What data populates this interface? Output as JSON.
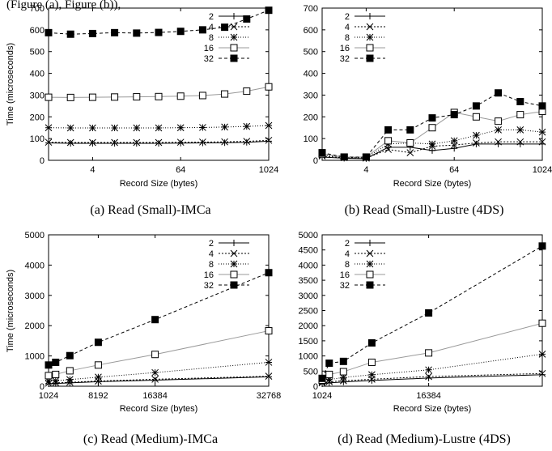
{
  "top_text": "(Figure (a), Figure (b)),",
  "chart_data": [
    {
      "type": "line",
      "caption": "(a) Read (Small)-IMCa",
      "xlabel": "Record Size (bytes)",
      "ylabel": "Time (microseconds)",
      "xscale": "log2",
      "xlim": [
        1,
        1024
      ],
      "ylim": [
        0,
        700
      ],
      "xticks": [
        4,
        64,
        1024
      ],
      "yticks": [
        0,
        100,
        200,
        300,
        400,
        500,
        600,
        700
      ],
      "legend_position": "top-right",
      "x": [
        1,
        2,
        4,
        8,
        16,
        32,
        64,
        128,
        256,
        512,
        1024
      ],
      "series": [
        {
          "name": "2",
          "values": [
            80,
            78,
            78,
            78,
            78,
            78,
            79,
            80,
            81,
            83,
            88
          ]
        },
        {
          "name": "4",
          "values": [
            83,
            82,
            82,
            82,
            82,
            82,
            83,
            84,
            85,
            87,
            92
          ]
        },
        {
          "name": "8",
          "values": [
            150,
            149,
            149,
            149,
            149,
            149,
            150,
            151,
            153,
            156,
            160
          ]
        },
        {
          "name": "16",
          "values": [
            290,
            289,
            290,
            291,
            292,
            293,
            295,
            298,
            305,
            318,
            338
          ]
        },
        {
          "name": "32",
          "values": [
            587,
            580,
            583,
            587,
            585,
            588,
            593,
            600,
            612,
            650,
            690
          ]
        }
      ]
    },
    {
      "type": "line",
      "caption": "(b) Read (Small)-Lustre (4DS)",
      "xlabel": "Record Size (bytes)",
      "ylabel": "",
      "xscale": "log2",
      "xlim": [
        1,
        1024
      ],
      "ylim": [
        0,
        700
      ],
      "xticks": [
        4,
        64,
        1024
      ],
      "yticks": [
        0,
        100,
        200,
        300,
        400,
        500,
        600,
        700
      ],
      "legend_position": "top-left",
      "x": [
        1,
        2,
        4,
        8,
        16,
        32,
        64,
        128,
        256,
        512,
        1024
      ],
      "series": [
        {
          "name": "2",
          "values": [
            15,
            10,
            8,
            60,
            60,
            45,
            55,
            75,
            75,
            75,
            75
          ]
        },
        {
          "name": "4",
          "values": [
            20,
            12,
            10,
            50,
            35,
            65,
            70,
            80,
            85,
            85,
            85
          ]
        },
        {
          "name": "8",
          "values": [
            25,
            15,
            12,
            75,
            80,
            75,
            90,
            115,
            140,
            140,
            130
          ]
        },
        {
          "name": "16",
          "values": [
            30,
            15,
            15,
            90,
            80,
            150,
            220,
            200,
            180,
            210,
            225
          ]
        },
        {
          "name": "32",
          "values": [
            35,
            15,
            15,
            140,
            140,
            195,
            210,
            250,
            310,
            270,
            250
          ]
        }
      ]
    },
    {
      "type": "line",
      "caption": "(c) Read (Medium)-IMCa",
      "xlabel": "Record Size (bytes)",
      "ylabel": "Time (microseconds)",
      "xscale": "linear",
      "xlim": [
        1024,
        32768
      ],
      "ylim": [
        0,
        5000
      ],
      "xticks": [
        1024,
        8192,
        16384,
        32768
      ],
      "yticks": [
        0,
        1000,
        2000,
        3000,
        4000,
        5000
      ],
      "legend_position": "top-right",
      "x": [
        1024,
        2048,
        4096,
        8192,
        16384,
        32768
      ],
      "series": [
        {
          "name": "2",
          "values": [
            80,
            90,
            110,
            150,
            200,
            310
          ]
        },
        {
          "name": "4",
          "values": [
            100,
            110,
            130,
            170,
            230,
            330
          ]
        },
        {
          "name": "8",
          "values": [
            170,
            180,
            220,
            300,
            450,
            790
          ]
        },
        {
          "name": "16",
          "values": [
            350,
            390,
            510,
            700,
            1050,
            1830
          ]
        },
        {
          "name": "32",
          "values": [
            700,
            790,
            1010,
            1450,
            2200,
            3750
          ]
        }
      ]
    },
    {
      "type": "line",
      "caption": "(d) Read (Medium)-Lustre (4DS)",
      "xlabel": "Record Size (bytes)",
      "ylabel": "",
      "xscale": "linear",
      "xlim": [
        1024,
        32768
      ],
      "ylim": [
        0,
        5000
      ],
      "xticks": [
        1024,
        16384
      ],
      "yticks": [
        0,
        500,
        1000,
        1500,
        2000,
        2500,
        3000,
        3500,
        4000,
        4500,
        5000
      ],
      "legend_position": "top-left",
      "x": [
        1024,
        2048,
        4096,
        8192,
        16384,
        32768
      ],
      "series": [
        {
          "name": "2",
          "values": [
            80,
            110,
            140,
            190,
            270,
            380
          ]
        },
        {
          "name": "4",
          "values": [
            110,
            150,
            180,
            230,
            320,
            420
          ]
        },
        {
          "name": "8",
          "values": [
            150,
            220,
            290,
            380,
            540,
            1060
          ]
        },
        {
          "name": "16",
          "values": [
            200,
            390,
            480,
            790,
            1100,
            2080
          ]
        },
        {
          "name": "32",
          "values": [
            260,
            760,
            820,
            1430,
            2420,
            4630
          ]
        }
      ]
    }
  ]
}
